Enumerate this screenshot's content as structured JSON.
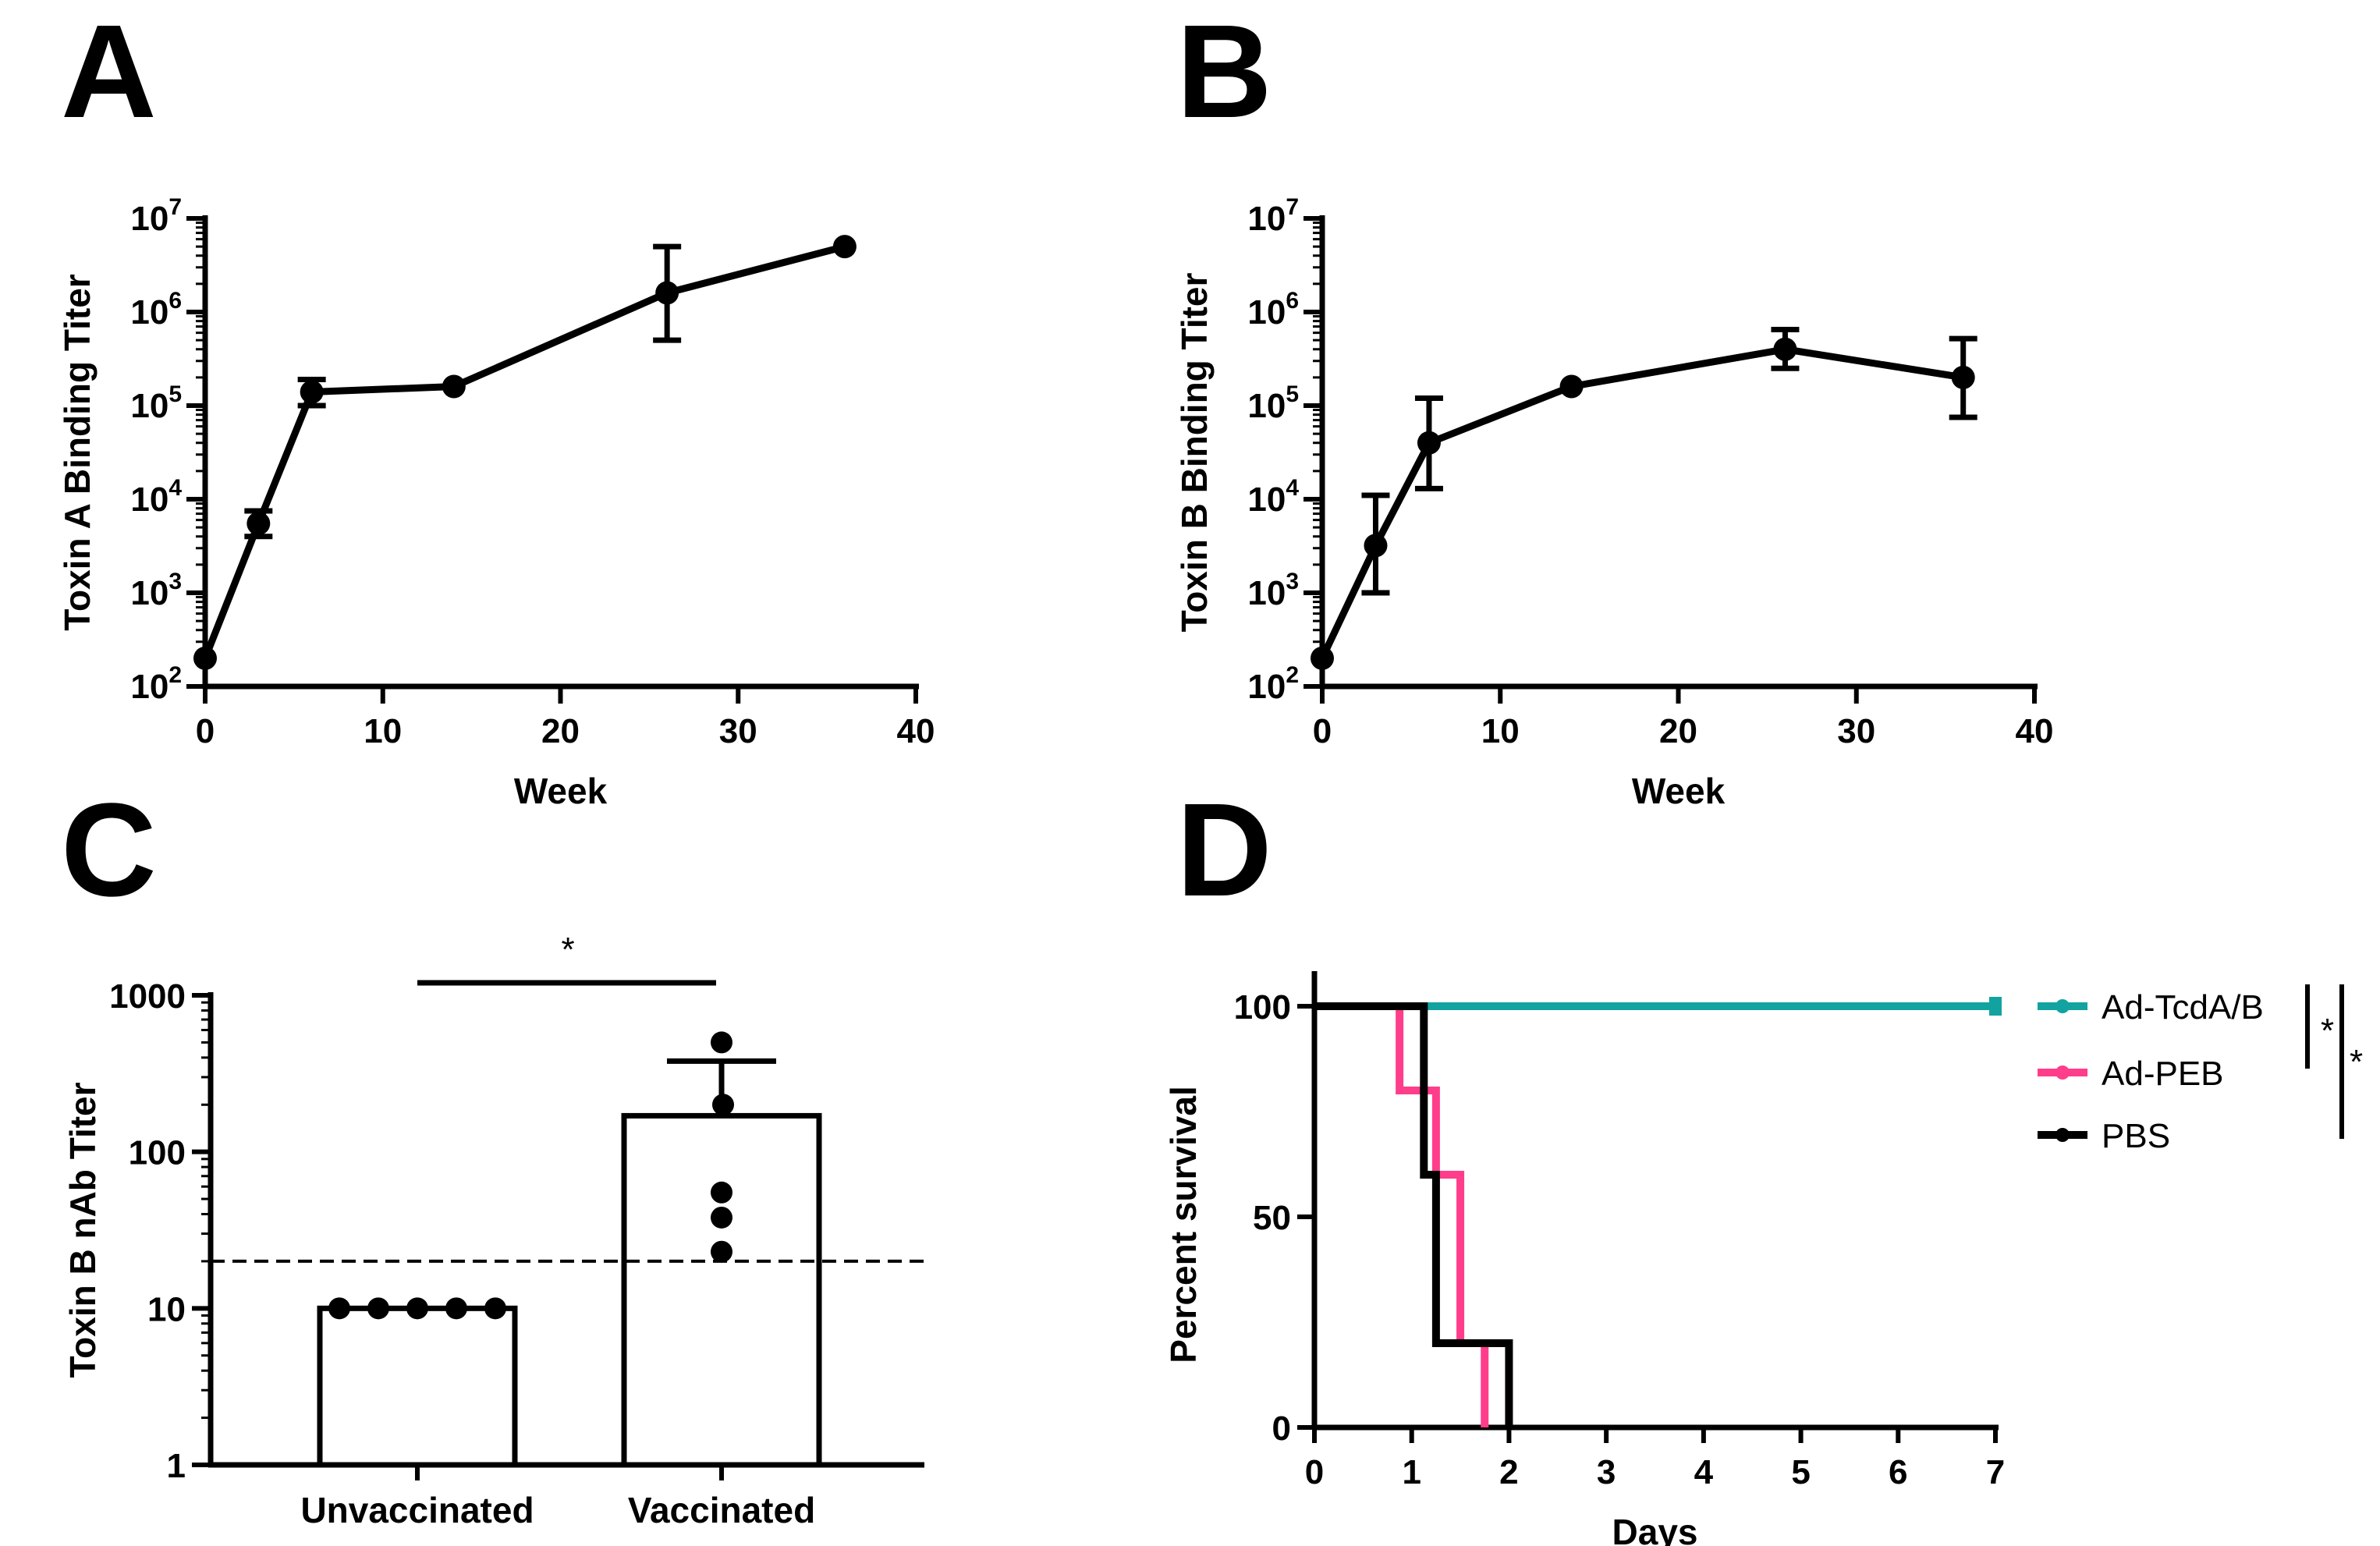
{
  "colors": {
    "axis": "#000000",
    "tcda": "#12a3a0",
    "peb": "#ff3d8b",
    "pbs": "#000000",
    "bar_fill": "#ffffff"
  },
  "chart_data": [
    {
      "panel": "A",
      "type": "line",
      "xlabel": "Week",
      "ylabel": "Toxin A Binding Titer",
      "xlim": [
        0,
        40
      ],
      "ylim": [
        100,
        10000000
      ],
      "yscale": "log",
      "xticks": [
        "0",
        "10",
        "20",
        "30",
        "40"
      ],
      "yticks": [
        {
          "base": "10",
          "exp": "2"
        },
        {
          "base": "10",
          "exp": "3"
        },
        {
          "base": "10",
          "exp": "4"
        },
        {
          "base": "10",
          "exp": "5"
        },
        {
          "base": "10",
          "exp": "6"
        },
        {
          "base": "10",
          "exp": "7"
        }
      ],
      "points": [
        {
          "x": 0,
          "y": 200,
          "lo": 180,
          "hi": 220
        },
        {
          "x": 3,
          "y": 5500,
          "lo": 4000,
          "hi": 7500
        },
        {
          "x": 6,
          "y": 140000,
          "lo": 100000,
          "hi": 190000
        },
        {
          "x": 14,
          "y": 160000,
          "lo": 150000,
          "hi": 170000
        },
        {
          "x": 26,
          "y": 1600000,
          "lo": 500000,
          "hi": 5000000
        },
        {
          "x": 36,
          "y": 5000000,
          "lo": 4700000,
          "hi": 5300000
        }
      ]
    },
    {
      "panel": "B",
      "type": "line",
      "xlabel": "Week",
      "ylabel": "Toxin B Binding Titer",
      "xlim": [
        0,
        40
      ],
      "ylim": [
        100,
        10000000
      ],
      "yscale": "log",
      "xticks": [
        "0",
        "10",
        "20",
        "30",
        "40"
      ],
      "yticks": [
        {
          "base": "10",
          "exp": "2"
        },
        {
          "base": "10",
          "exp": "3"
        },
        {
          "base": "10",
          "exp": "4"
        },
        {
          "base": "10",
          "exp": "5"
        },
        {
          "base": "10",
          "exp": "6"
        },
        {
          "base": "10",
          "exp": "7"
        }
      ],
      "points": [
        {
          "x": 0,
          "y": 200,
          "lo": 180,
          "hi": 220
        },
        {
          "x": 3,
          "y": 3200,
          "lo": 1000,
          "hi": 11000
        },
        {
          "x": 6,
          "y": 40000,
          "lo": 13000,
          "hi": 120000
        },
        {
          "x": 14,
          "y": 160000,
          "lo": 150000,
          "hi": 170000
        },
        {
          "x": 26,
          "y": 400000,
          "lo": 250000,
          "hi": 650000
        },
        {
          "x": 36,
          "y": 200000,
          "lo": 75000,
          "hi": 520000
        }
      ]
    },
    {
      "panel": "C",
      "type": "bar",
      "ylabel": "Toxin B nAb Titer",
      "yscale": "log",
      "ylim": [
        1,
        1000
      ],
      "yticks": [
        "1",
        "10",
        "100",
        "1000"
      ],
      "categories": [
        "Unvaccinated",
        "Vaccinated"
      ],
      "values": [
        10,
        170
      ],
      "error_hi": [
        10,
        380
      ],
      "points": [
        [
          10,
          10,
          10,
          10,
          10
        ],
        [
          500,
          200,
          55,
          38,
          23
        ]
      ],
      "threshold": 20,
      "significance": "*"
    },
    {
      "panel": "D",
      "type": "line",
      "subtype": "step",
      "xlabel": "Days",
      "ylabel": "Percent survival",
      "xlim": [
        0,
        7
      ],
      "ylim": [
        0,
        100
      ],
      "xticks": [
        "0",
        "1",
        "2",
        "3",
        "4",
        "5",
        "6",
        "7"
      ],
      "yticks": [
        "0",
        "50",
        "100"
      ],
      "series": [
        {
          "name": "Ad-TcdA/B",
          "x": [
            0,
            7
          ],
          "y": [
            100,
            100
          ]
        },
        {
          "name": "Ad-PEB",
          "x": [
            0,
            0.875,
            1.25,
            1.5,
            1.75
          ],
          "y": [
            100,
            80,
            60,
            20,
            0
          ]
        },
        {
          "name": "PBS",
          "x": [
            0,
            1.125,
            1.25,
            2.0
          ],
          "y": [
            100,
            60,
            20,
            0
          ]
        }
      ],
      "significance": [
        "*",
        "*"
      ]
    }
  ]
}
